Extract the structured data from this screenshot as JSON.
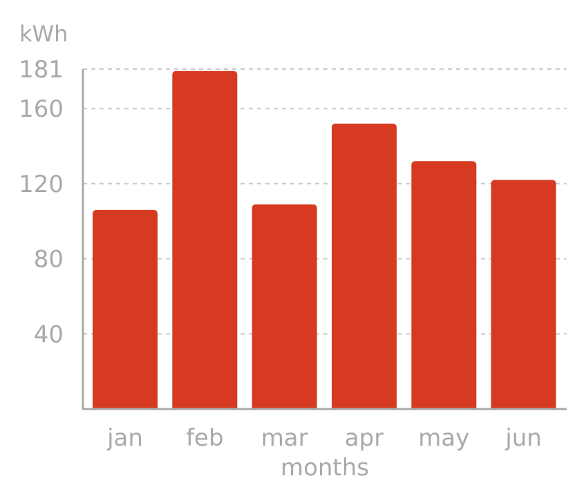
{
  "chart_data": {
    "type": "bar",
    "unit_label": "kWh",
    "xlabel": "months",
    "ylabel": "",
    "categories": [
      "jan",
      "feb",
      "mar",
      "apr",
      "may",
      "jun"
    ],
    "values": [
      106,
      180,
      109,
      152,
      132,
      122
    ],
    "ylim": [
      0,
      181
    ],
    "yticks": [
      40,
      80,
      120,
      160,
      181
    ],
    "grid": true,
    "bar_color": "#d63b22",
    "axis_color": "#a9a9a9",
    "grid_color": "#c9c9c9"
  }
}
